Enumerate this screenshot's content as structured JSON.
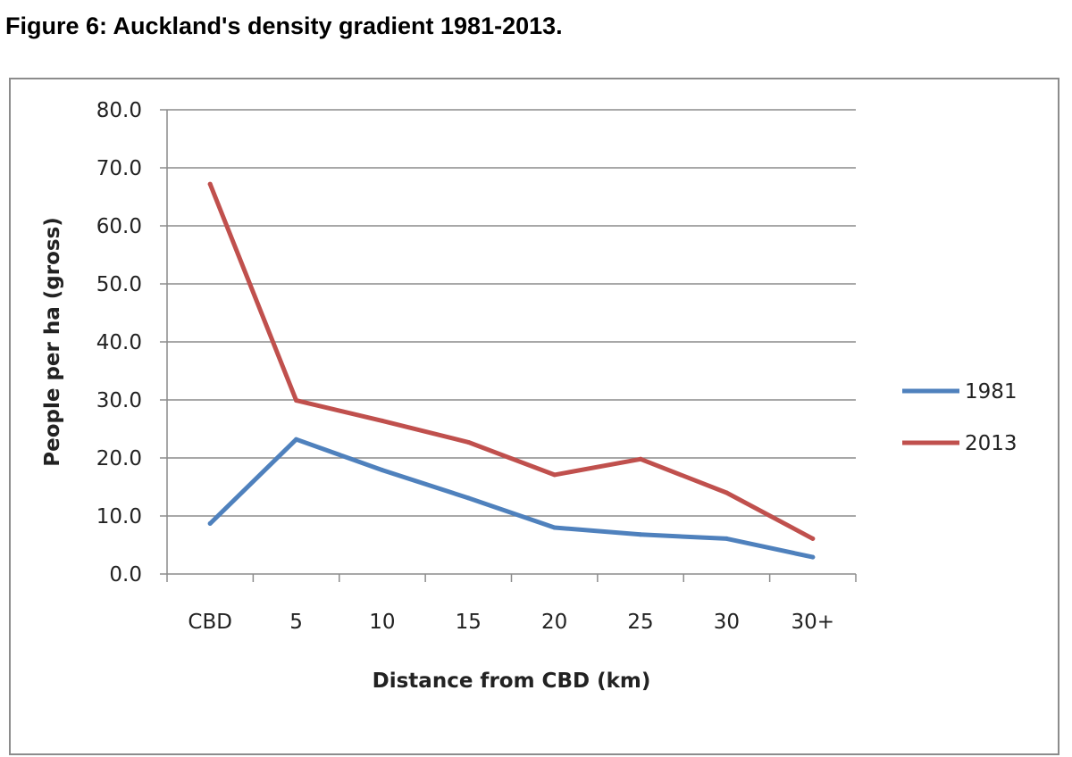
{
  "figure": {
    "title": "Figure 6: Auckland's density gradient 1981-2013."
  },
  "chart_data": {
    "type": "line",
    "title": "Figure 6: Auckland's density gradient 1981-2013.",
    "categories": [
      "CBD",
      "5",
      "10",
      "15",
      "20",
      "25",
      "30",
      "30+"
    ],
    "xlabel": "Distance from CBD (km)",
    "ylabel": "People per ha (gross)",
    "ylim": [
      0,
      80
    ],
    "yticks": [
      "0.0",
      "10.0",
      "20.0",
      "30.0",
      "40.0",
      "50.0",
      "60.0",
      "70.0",
      "80.0"
    ],
    "grid": true,
    "legend_position": "right",
    "series": [
      {
        "name": "1981",
        "color": "#4f81bd",
        "values": [
          8.7,
          23.2,
          17.9,
          13.1,
          8.0,
          6.8,
          6.1,
          2.9
        ]
      },
      {
        "name": "2013",
        "color": "#c0504d",
        "values": [
          67.2,
          29.9,
          26.4,
          22.7,
          17.1,
          19.8,
          14.0,
          6.1
        ]
      }
    ]
  }
}
